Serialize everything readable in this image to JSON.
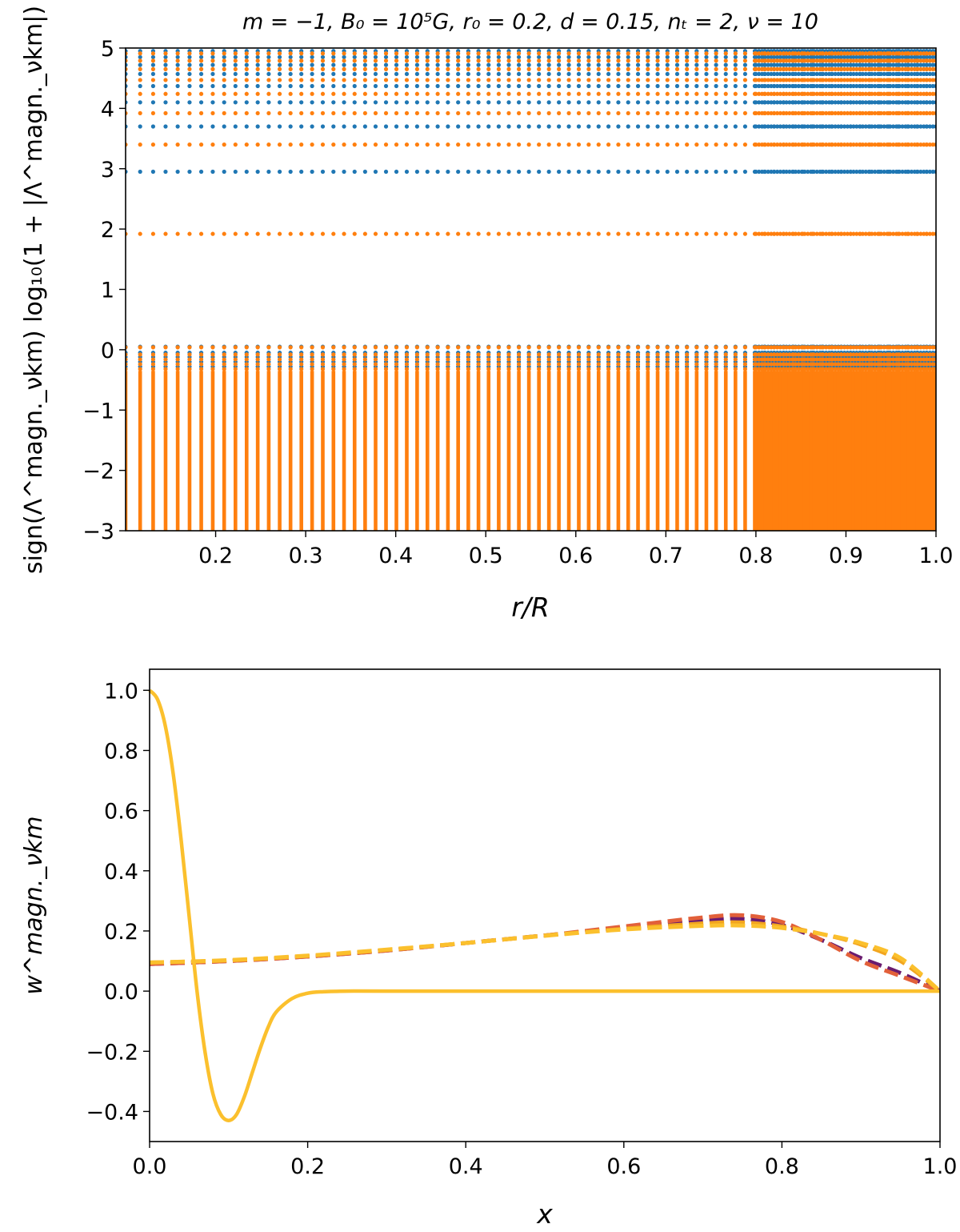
{
  "figure": {
    "description_free": true
  },
  "colors": {
    "blue": "#1f77b4",
    "orange": "#ff7f0e",
    "purple": "#6a1b6f",
    "red_orange": "#e2603a",
    "amber": "#f2a51f",
    "yellow": "#fbc02d",
    "axis": "#000000"
  },
  "chart_data": [
    {
      "type": "scatter",
      "title": "m = −1,  B₀ = 10⁵G,  r₀ = 0.2,  d = 0.15,  nₜ = 2,  ν = 10",
      "xlabel": "r/R",
      "ylabel": "sign(Λ^magn._νkm) log₁₀(1 + |Λ^magn._νkm|)",
      "xlim": [
        0.1,
        1.0
      ],
      "ylim": [
        -3,
        5
      ],
      "xticks": [
        "0.2",
        "0.3",
        "0.4",
        "0.5",
        "0.6",
        "0.7",
        "0.8",
        "0.9",
        "1.0"
      ],
      "yticks": [
        "−3",
        "−2",
        "−1",
        "0",
        "1",
        "2",
        "3",
        "4",
        "5"
      ],
      "x_grid": {
        "start": 0.1,
        "end": 1.0,
        "count": 80,
        "dense_from": 0.8,
        "dense_count": 60
      },
      "series": [
        {
          "name": "blue",
          "color_key": "blue",
          "levels": [
            2.95,
            3.7,
            4.1,
            4.37,
            4.57,
            4.72,
            4.85,
            4.95,
            0.05,
            -0.05,
            -0.12,
            -0.2,
            -0.28
          ]
        },
        {
          "name": "orange",
          "color_key": "orange",
          "levels": [
            1.92,
            3.4,
            3.92,
            4.24,
            4.47,
            4.65,
            4.79,
            4.91,
            0.04,
            -0.08,
            -0.16,
            -0.24,
            -0.32
          ],
          "dense_columns_below": -0.35
        }
      ]
    },
    {
      "type": "line",
      "xlabel": "x",
      "ylabel": "w^magn._νkm",
      "xlim": [
        0.0,
        1.0
      ],
      "ylim": [
        -0.5,
        1.07
      ],
      "xticks": [
        "0.0",
        "0.2",
        "0.4",
        "0.6",
        "0.8",
        "1.0"
      ],
      "yticks": [
        "−0.4",
        "−0.2",
        "0.0",
        "0.2",
        "0.4",
        "0.6",
        "0.8",
        "1.0"
      ],
      "series": [
        {
          "name": "solid",
          "style": "solid",
          "color_key": "yellow",
          "x": [
            0.0,
            0.01,
            0.02,
            0.03,
            0.04,
            0.05,
            0.06,
            0.07,
            0.08,
            0.09,
            0.1,
            0.11,
            0.12,
            0.13,
            0.14,
            0.15,
            0.16,
            0.18,
            0.2,
            0.22,
            0.25,
            0.3,
            0.5,
            0.8,
            1.0
          ],
          "values": [
            1.0,
            0.97,
            0.88,
            0.72,
            0.5,
            0.25,
            0.0,
            -0.2,
            -0.34,
            -0.41,
            -0.43,
            -0.41,
            -0.35,
            -0.27,
            -0.19,
            -0.12,
            -0.07,
            -0.025,
            -0.007,
            -0.002,
            0.0,
            0.0,
            0.0,
            0.0,
            0.0
          ]
        },
        {
          "name": "dashed-purple",
          "style": "dashed",
          "color_key": "purple",
          "x": [
            0.0,
            0.1,
            0.2,
            0.3,
            0.4,
            0.5,
            0.6,
            0.7,
            0.75,
            0.8,
            0.85,
            0.9,
            0.95,
            1.0
          ],
          "values": [
            0.09,
            0.1,
            0.115,
            0.135,
            0.16,
            0.185,
            0.21,
            0.235,
            0.24,
            0.22,
            0.17,
            0.11,
            0.06,
            0.0
          ]
        },
        {
          "name": "dashed-red-orange",
          "style": "dashed",
          "color_key": "red_orange",
          "x": [
            0.0,
            0.1,
            0.2,
            0.3,
            0.4,
            0.5,
            0.6,
            0.7,
            0.75,
            0.8,
            0.85,
            0.9,
            0.95,
            1.0
          ],
          "values": [
            0.09,
            0.1,
            0.115,
            0.135,
            0.16,
            0.185,
            0.215,
            0.245,
            0.252,
            0.23,
            0.17,
            0.1,
            0.05,
            0.0
          ]
        },
        {
          "name": "dashed-amber",
          "style": "dashed",
          "color_key": "amber",
          "x": [
            0.0,
            0.1,
            0.2,
            0.3,
            0.4,
            0.5,
            0.6,
            0.7,
            0.75,
            0.8,
            0.85,
            0.9,
            0.95,
            1.0
          ],
          "values": [
            0.095,
            0.102,
            0.117,
            0.137,
            0.16,
            0.185,
            0.207,
            0.225,
            0.228,
            0.215,
            0.19,
            0.155,
            0.1,
            0.0
          ]
        },
        {
          "name": "dashed-yellow",
          "style": "dashed",
          "color_key": "yellow",
          "x": [
            0.0,
            0.1,
            0.2,
            0.3,
            0.4,
            0.5,
            0.6,
            0.7,
            0.75,
            0.8,
            0.85,
            0.9,
            0.95,
            1.0
          ],
          "values": [
            0.095,
            0.103,
            0.118,
            0.138,
            0.16,
            0.184,
            0.205,
            0.217,
            0.218,
            0.21,
            0.19,
            0.16,
            0.11,
            0.0
          ]
        }
      ]
    }
  ]
}
